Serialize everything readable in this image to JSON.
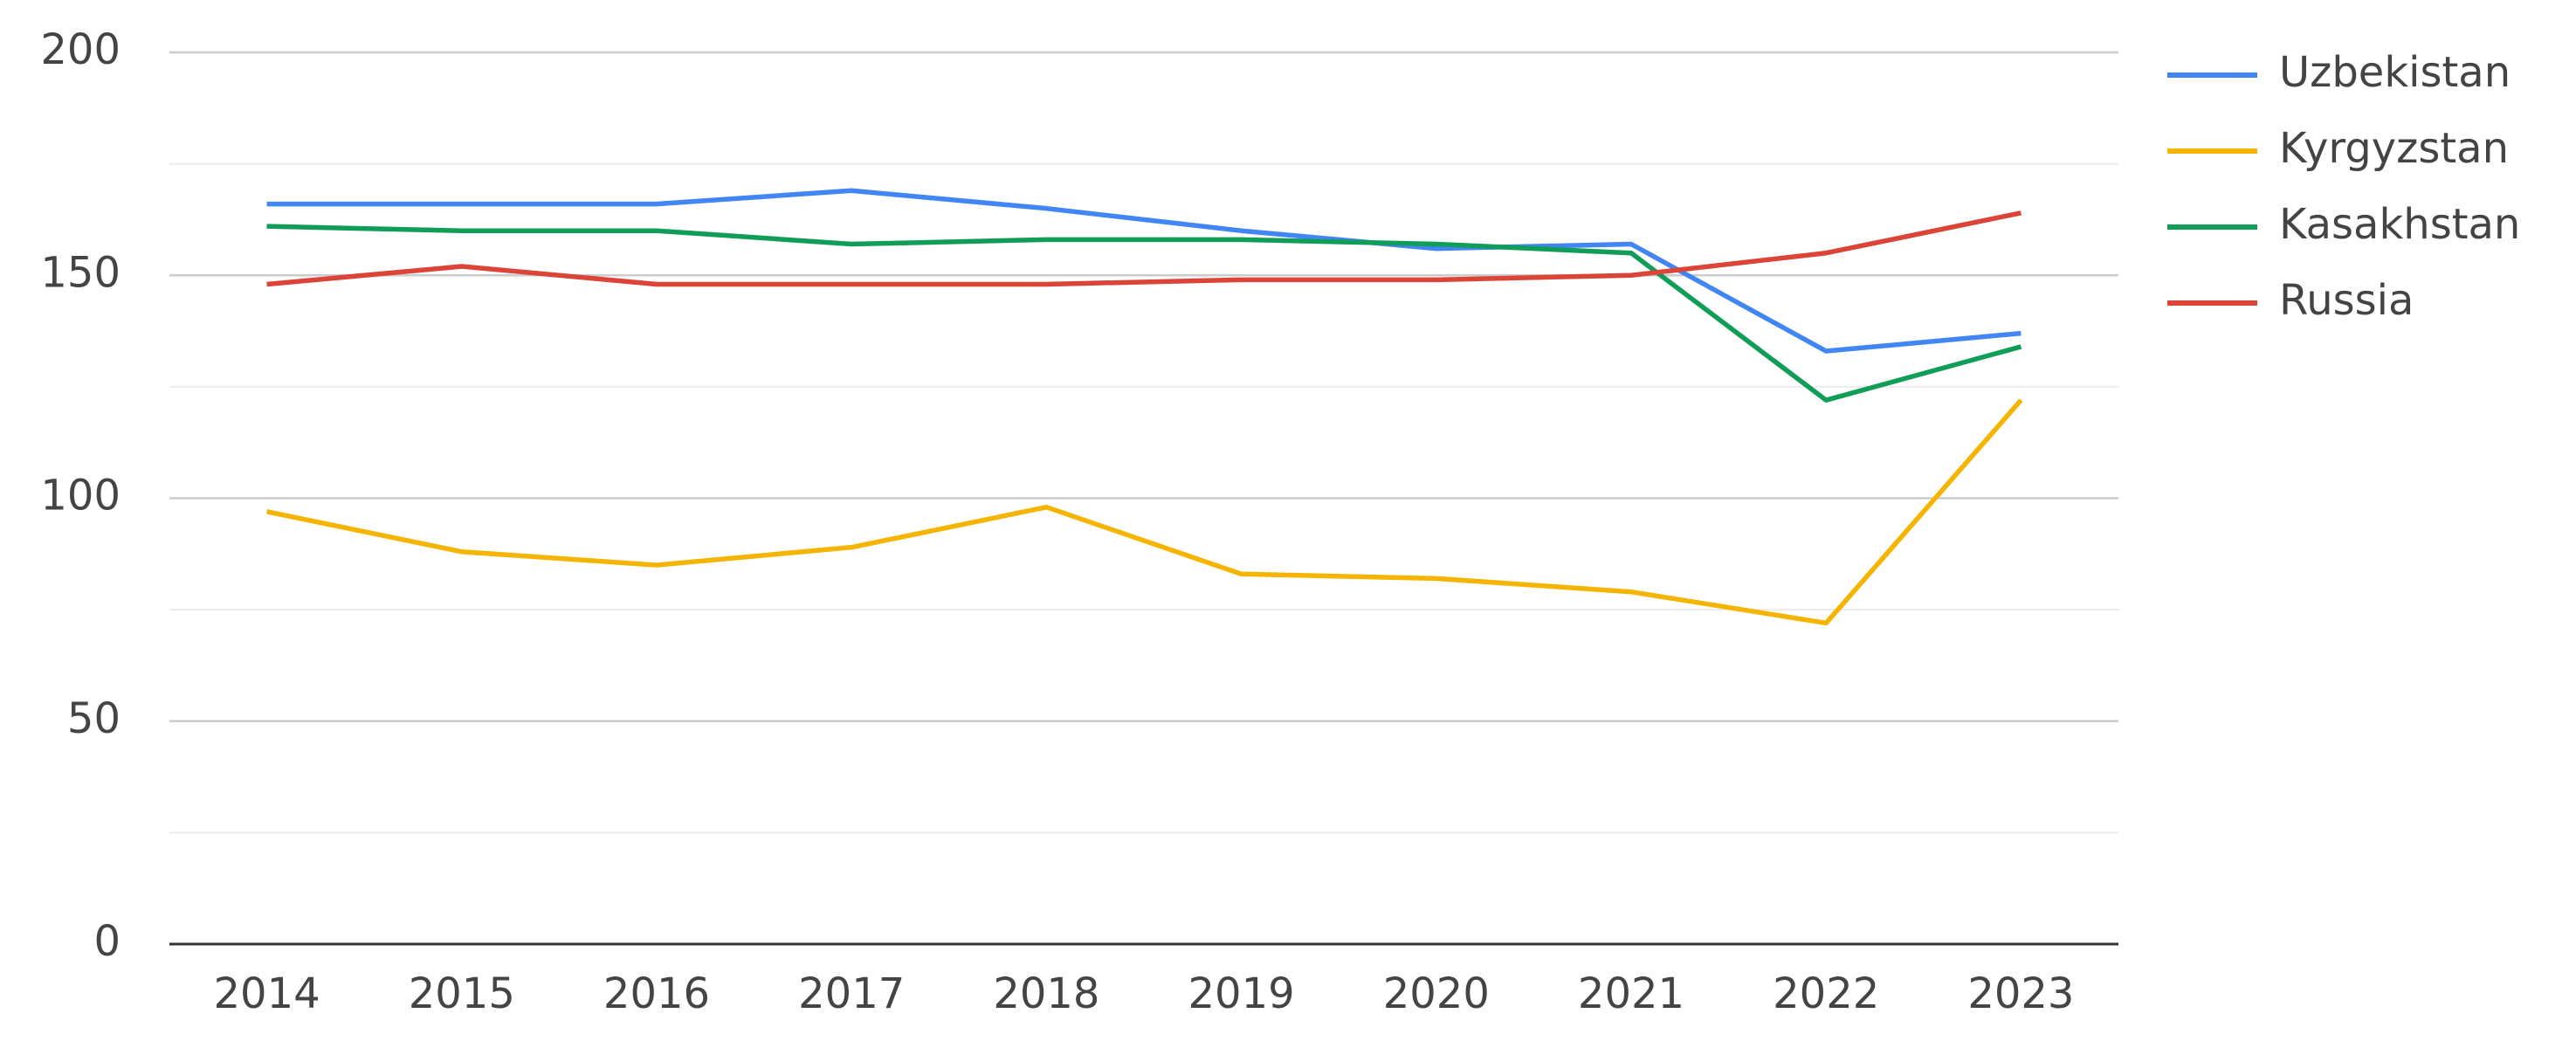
{
  "chart_data": {
    "type": "line",
    "categories": [
      "2014",
      "2015",
      "2016",
      "2017",
      "2018",
      "2019",
      "2020",
      "2021",
      "2022",
      "2023"
    ],
    "series": [
      {
        "name": "Uzbekistan",
        "color": "#4285f4",
        "values": [
          166,
          166,
          166,
          169,
          165,
          160,
          156,
          157,
          133,
          137
        ]
      },
      {
        "name": "Kyrgyzstan",
        "color": "#f4b400",
        "values": [
          97,
          88,
          85,
          89,
          98,
          83,
          82,
          79,
          72,
          122
        ]
      },
      {
        "name": "Kasakhstan",
        "color": "#0f9d58",
        "values": [
          161,
          160,
          160,
          157,
          158,
          158,
          157,
          155,
          122,
          134
        ]
      },
      {
        "name": "Russia",
        "color": "#db4437",
        "values": [
          148,
          152,
          148,
          148,
          148,
          149,
          149,
          150,
          155,
          164
        ]
      }
    ],
    "ylim": [
      0,
      200
    ],
    "yticks": [
      0,
      50,
      100,
      150,
      200
    ],
    "minor_gridlines": [
      25,
      75,
      125,
      175
    ],
    "grid": true,
    "legend": "right"
  }
}
